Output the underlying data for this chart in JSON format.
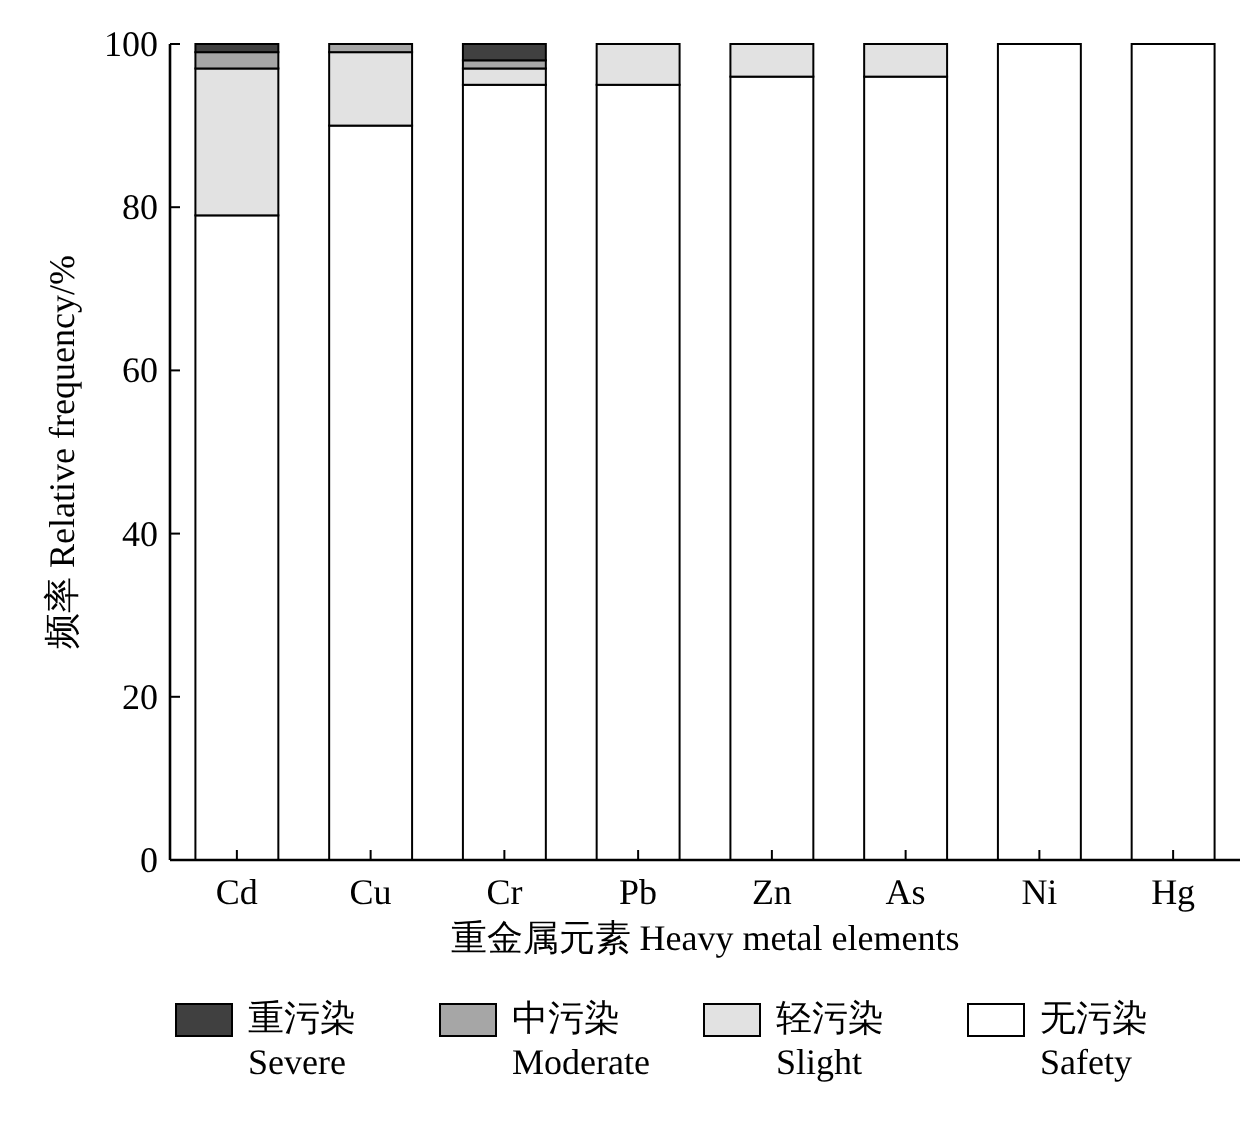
{
  "chart_data": {
    "type": "bar",
    "stacked": true,
    "xlabel": "重金属元素 Heavy metal elements",
    "ylabel": "频率 Relative frequency/%",
    "categories": [
      "Cd",
      "Cu",
      "Cr",
      "Pb",
      "Zn",
      "As",
      "Ni",
      "Hg"
    ],
    "series": [
      {
        "name": "无污染\nSafety",
        "color": "#ffffff",
        "values": [
          79,
          90,
          95,
          95,
          96,
          96,
          100,
          100
        ]
      },
      {
        "name": "轻污染\nSlight",
        "color": "#e2e2e2",
        "values": [
          18,
          9,
          2,
          5,
          4,
          4,
          0,
          0
        ]
      },
      {
        "name": "中污染\nModerate",
        "color": "#a6a6a6",
        "values": [
          2,
          1,
          1,
          0,
          0,
          0,
          0,
          0
        ]
      },
      {
        "name": "重污染\nSevere",
        "color": "#404040",
        "values": [
          1,
          0,
          2,
          0,
          0,
          0,
          0,
          0
        ]
      }
    ],
    "ylim": [
      0,
      100
    ],
    "yticks": [
      0,
      20,
      40,
      60,
      80,
      100
    ],
    "legend": "bottom",
    "grid": false
  }
}
